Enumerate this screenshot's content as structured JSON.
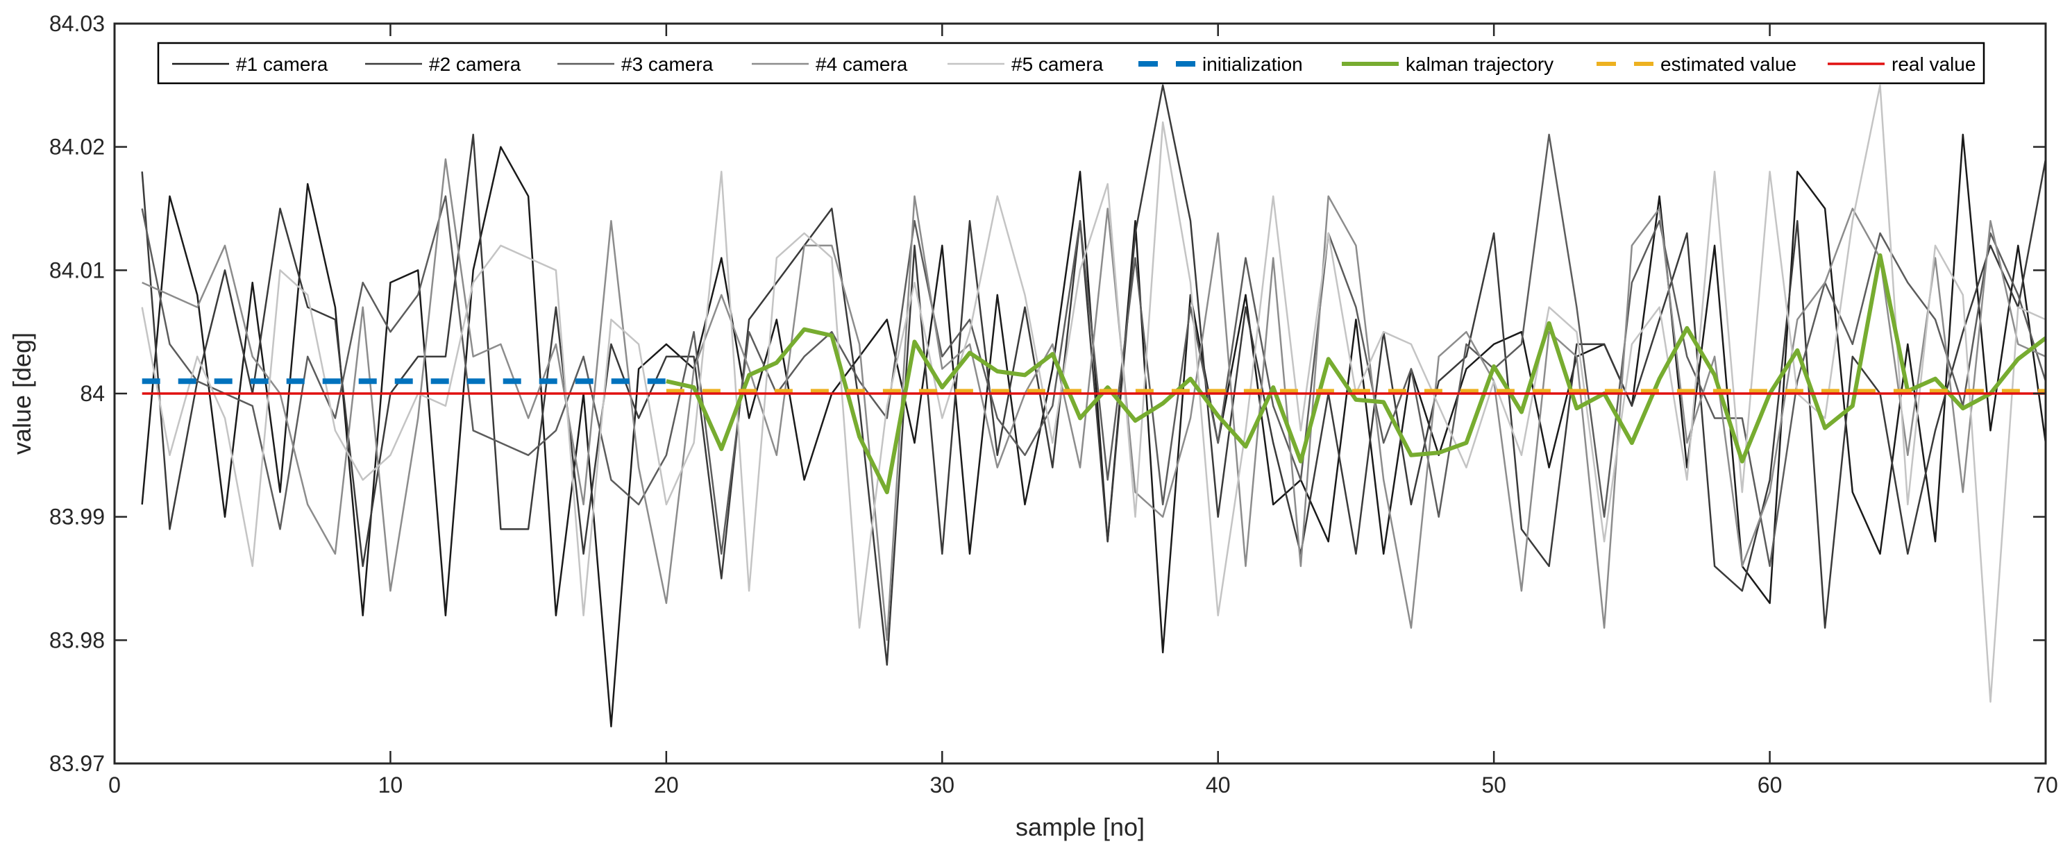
{
  "chart_data": {
    "type": "line",
    "title": "",
    "xlabel": "sample [no]",
    "ylabel": "value [deg]",
    "xlim": [
      0,
      70
    ],
    "ylim": [
      83.97,
      84.03
    ],
    "xticks": [
      0,
      10,
      20,
      30,
      40,
      50,
      60,
      70
    ],
    "xtick_labels": [
      "0",
      "10",
      "20",
      "30",
      "40",
      "50",
      "60",
      "70"
    ],
    "yticks": [
      83.97,
      83.98,
      83.99,
      84.0,
      84.01,
      84.02,
      84.03
    ],
    "ytick_labels": [
      "83.97",
      "83.98",
      "83.99",
      "84",
      "84.01",
      "84.02",
      "84.03"
    ],
    "grid": false,
    "legend_position": "top",
    "x": [
      1,
      2,
      3,
      4,
      5,
      6,
      7,
      8,
      9,
      10,
      11,
      12,
      13,
      14,
      15,
      16,
      17,
      18,
      19,
      20,
      21,
      22,
      23,
      24,
      25,
      26,
      27,
      28,
      29,
      30,
      31,
      32,
      33,
      34,
      35,
      36,
      37,
      38,
      39,
      40,
      41,
      42,
      43,
      44,
      45,
      46,
      47,
      48,
      49,
      50,
      51,
      52,
      53,
      54,
      55,
      56,
      57,
      58,
      59,
      60,
      61,
      62,
      63,
      64,
      65,
      66,
      67,
      68,
      69,
      70
    ],
    "series": [
      {
        "name": "#1 camera",
        "color": "#1a1a1a",
        "width": 2.5,
        "dash": "",
        "values": [
          83.991,
          84.016,
          84.008,
          83.99,
          84.009,
          83.992,
          84.017,
          84.007,
          83.982,
          84.009,
          84.01,
          83.982,
          84.01,
          84.02,
          84.016,
          83.982,
          84.0,
          83.973,
          84.002,
          84.004,
          84.002,
          84.011,
          83.998,
          84.006,
          83.993,
          84.0,
          84.003,
          84.006,
          83.996,
          84.012,
          83.987,
          84.008,
          83.991,
          84.002,
          84.018,
          83.988,
          84.014,
          83.979,
          84.008,
          83.996,
          84.008,
          83.991,
          83.993,
          83.988,
          84.006,
          83.987,
          84.002,
          83.995,
          84.002,
          84.004,
          84.005,
          83.994,
          84.003,
          84.004,
          83.999,
          84.016,
          83.994,
          84.012,
          83.986,
          83.983,
          84.018,
          84.015,
          83.992,
          83.987,
          84.004,
          83.988,
          84.021,
          83.997,
          84.012,
          83.996
        ]
      },
      {
        "name": "#2 camera",
        "color": "#3a3a3a",
        "width": 2.5,
        "dash": "",
        "values": [
          84.018,
          83.989,
          84.001,
          84.01,
          84.0,
          84.015,
          84.007,
          84.006,
          83.986,
          84.0,
          84.003,
          84.003,
          84.021,
          83.989,
          83.989,
          84.007,
          83.987,
          84.004,
          83.998,
          84.003,
          84.003,
          83.985,
          84.006,
          84.009,
          84.012,
          84.015,
          83.999,
          83.978,
          84.012,
          83.987,
          84.014,
          83.995,
          84.007,
          83.994,
          84.014,
          83.988,
          84.013,
          84.025,
          84.014,
          83.99,
          84.007,
          83.996,
          83.987,
          84.0,
          83.987,
          84.005,
          83.991,
          84.001,
          84.003,
          84.013,
          83.989,
          83.986,
          84.004,
          84.004,
          83.999,
          84.006,
          84.013,
          83.986,
          83.984,
          83.993,
          84.014,
          83.981,
          84.003,
          84.0,
          83.987,
          83.997,
          84.005,
          84.012,
          84.007,
          84.019
        ]
      },
      {
        "name": "#3 camera",
        "color": "#5c5c5c",
        "width": 2.5,
        "dash": "",
        "values": [
          84.015,
          84.004,
          84.001,
          84.0,
          83.999,
          83.989,
          84.003,
          83.998,
          84.009,
          84.005,
          84.008,
          84.016,
          83.997,
          83.996,
          83.995,
          83.997,
          84.003,
          83.993,
          83.991,
          83.995,
          84.005,
          83.987,
          84.005,
          84.0,
          84.003,
          84.005,
          84.001,
          83.998,
          84.014,
          84.003,
          84.006,
          83.998,
          83.995,
          83.999,
          84.014,
          83.993,
          84.011,
          83.991,
          84.007,
          83.996,
          84.011,
          83.999,
          83.993,
          84.013,
          84.007,
          83.996,
          84.002,
          83.99,
          84.004,
          84.002,
          84.004,
          84.021,
          84.007,
          83.99,
          84.009,
          84.014,
          84.003,
          83.998,
          83.998,
          83.986,
          84.001,
          84.009,
          84.004,
          84.013,
          84.009,
          84.006,
          83.999,
          84.013,
          84.008,
          84.001
        ]
      },
      {
        "name": "#4 camera",
        "color": "#8c8c8c",
        "width": 2.5,
        "dash": "",
        "values": [
          84.009,
          84.008,
          84.007,
          84.012,
          84.003,
          84.0,
          83.991,
          83.987,
          84.007,
          83.984,
          83.998,
          84.019,
          84.003,
          84.004,
          83.998,
          84.004,
          83.991,
          84.014,
          83.994,
          83.983,
          84.002,
          84.008,
          84.002,
          83.995,
          84.012,
          84.012,
          84.004,
          83.98,
          84.016,
          84.002,
          84.004,
          83.994,
          84.0,
          84.004,
          83.994,
          84.015,
          83.992,
          83.99,
          83.998,
          84.013,
          83.986,
          84.011,
          83.986,
          84.016,
          84.012,
          83.993,
          83.981,
          84.003,
          84.005,
          84.001,
          83.984,
          84.005,
          84.003,
          83.981,
          84.012,
          84.015,
          83.996,
          84.003,
          83.986,
          83.992,
          84.006,
          84.009,
          84.015,
          84.011,
          83.995,
          84.011,
          83.992,
          84.014,
          84.004,
          84.003
        ]
      },
      {
        "name": "#5 camera",
        "color": "#c4c4c4",
        "width": 2.5,
        "dash": "",
        "values": [
          84.007,
          83.995,
          84.003,
          83.998,
          83.986,
          84.01,
          84.008,
          83.997,
          83.993,
          83.995,
          84.0,
          83.999,
          84.009,
          84.012,
          84.011,
          84.01,
          83.982,
          84.006,
          84.004,
          83.991,
          83.996,
          84.018,
          83.984,
          84.011,
          84.013,
          84.011,
          83.981,
          83.999,
          84.009,
          83.998,
          84.005,
          84.016,
          84.008,
          83.996,
          84.01,
          84.017,
          83.99,
          84.022,
          84.009,
          83.982,
          83.997,
          84.016,
          83.997,
          84.013,
          84.0,
          84.005,
          84.004,
          83.999,
          83.994,
          84.001,
          83.995,
          84.007,
          84.005,
          83.988,
          84.004,
          84.007,
          83.993,
          84.018,
          83.992,
          84.018,
          84.0,
          83.998,
          84.014,
          84.025,
          83.991,
          84.012,
          84.008,
          83.975,
          84.007,
          84.006
        ]
      },
      {
        "name": "initialization",
        "color": "#0072bd",
        "width": 8,
        "dash": "26 26",
        "x": [
          1,
          20
        ],
        "values": [
          84.001,
          84.001
        ]
      },
      {
        "name": "kalman trajectory",
        "color": "#77ac30",
        "width": 6,
        "dash": "",
        "x": [
          20,
          21,
          22,
          23,
          24,
          25,
          26,
          27,
          28,
          29,
          30,
          31,
          32,
          33,
          34,
          35,
          36,
          37,
          38,
          39,
          40,
          41,
          42,
          43,
          44,
          45,
          46,
          47,
          48,
          49,
          50,
          51,
          52,
          53,
          54,
          55,
          56,
          57,
          58,
          59,
          60,
          61,
          62,
          63,
          64,
          65,
          66,
          67,
          68,
          69,
          70
        ],
        "values": [
          84.001,
          84.0005,
          83.9955,
          84.0015,
          84.0025,
          84.0052,
          84.0047,
          83.9965,
          83.992,
          84.0042,
          84.0005,
          84.0033,
          84.0018,
          84.0015,
          84.0032,
          83.998,
          84.0005,
          83.9978,
          83.9992,
          84.0012,
          83.9982,
          83.9957,
          84.0005,
          83.9945,
          84.0028,
          83.9995,
          83.9993,
          83.995,
          83.9952,
          83.996,
          84.0022,
          83.9985,
          84.0057,
          83.9988,
          84.0,
          83.996,
          84.0012,
          84.0053,
          84.0015,
          83.9945,
          84.0,
          84.0035,
          83.9972,
          83.999,
          84.0112,
          84.0002,
          84.0012,
          83.9988,
          84.0,
          84.0028,
          84.0045
        ]
      },
      {
        "name": "estimated value",
        "color": "#edb120",
        "width": 6,
        "dash": "26 26",
        "x": [
          20,
          70
        ],
        "values": [
          84.0002,
          84.0002
        ]
      },
      {
        "name": "real value",
        "color": "#e01010",
        "width": 3.5,
        "dash": "",
        "x": [
          1,
          70
        ],
        "values": [
          84.0,
          84.0
        ]
      }
    ]
  }
}
